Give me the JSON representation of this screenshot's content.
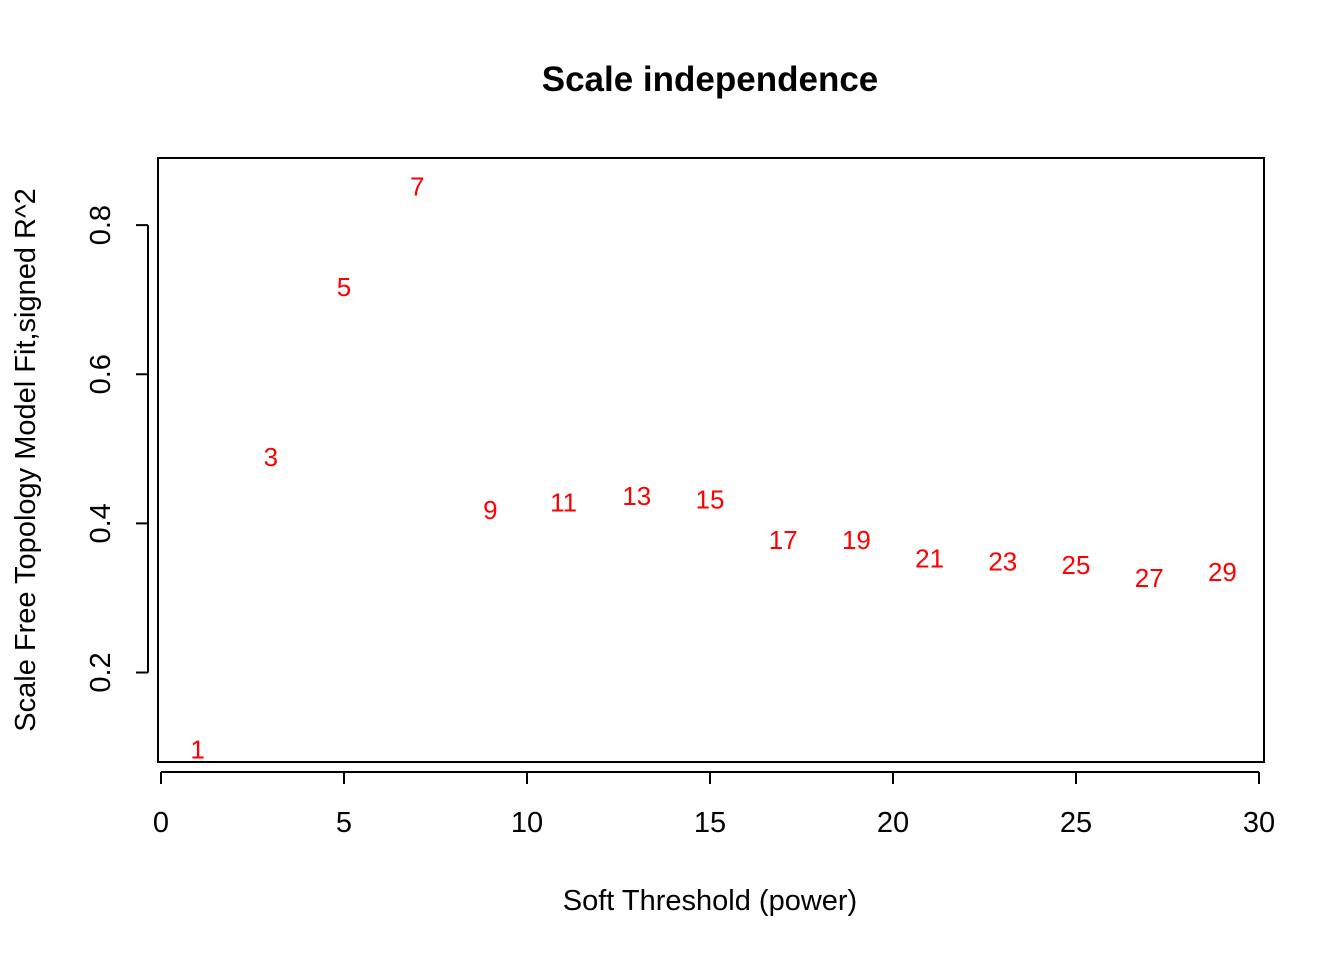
{
  "chart_data": {
    "type": "scatter",
    "title": "Scale independence",
    "xlabel": "Soft Threshold (power)",
    "ylabel": "Scale Free Topology Model Fit,signed R^2",
    "xlim": [
      0,
      30
    ],
    "ylim": [
      0.08,
      0.89
    ],
    "x_ticks": [
      0,
      5,
      10,
      15,
      20,
      25,
      30
    ],
    "y_ticks": [
      0.2,
      0.4,
      0.6,
      0.8
    ],
    "grid": false,
    "marker": "text-labels",
    "point_color": "#ff0000",
    "series": [
      {
        "x": [
          1,
          3,
          5,
          7,
          9,
          11,
          13,
          15,
          17,
          19,
          21,
          23,
          25,
          27,
          29
        ],
        "y": [
          0.097,
          0.489,
          0.717,
          0.852,
          0.418,
          0.428,
          0.437,
          0.432,
          0.378,
          0.378,
          0.353,
          0.349,
          0.344,
          0.327,
          0.335
        ],
        "labels": [
          "1",
          "3",
          "5",
          "7",
          "9",
          "11",
          "13",
          "15",
          "17",
          "19",
          "21",
          "23",
          "25",
          "27",
          "29"
        ]
      }
    ]
  }
}
